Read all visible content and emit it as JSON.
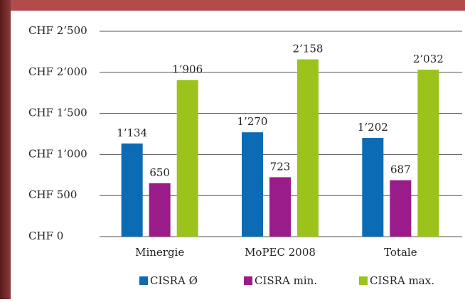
{
  "chart_data": {
    "type": "bar",
    "categories": [
      "Minergie",
      "MoPEC 2008",
      "Totale"
    ],
    "series": [
      {
        "name": "CISRA Ø",
        "color": "#0b6bb4",
        "values": [
          1134,
          1270,
          1202
        ],
        "value_labels": [
          "1’134",
          "1’270",
          "1’202"
        ]
      },
      {
        "name": "CISRA min.",
        "color": "#9a1b8a",
        "values": [
          650,
          723,
          687
        ],
        "value_labels": [
          "650",
          "723",
          "687"
        ]
      },
      {
        "name": "CISRA max.",
        "color": "#9bc31c",
        "values": [
          1906,
          2158,
          2032
        ],
        "value_labels": [
          "1’906",
          "2’158",
          "2’032"
        ]
      }
    ],
    "ylim": [
      0,
      2500
    ],
    "yticks": [
      {
        "value": 0,
        "label": "CHF 0"
      },
      {
        "value": 500,
        "label": "CHF 500"
      },
      {
        "value": 1000,
        "label": "CHF 1’000"
      },
      {
        "value": 1500,
        "label": "CHF 1’500"
      },
      {
        "value": 2000,
        "label": "CHF 2’000"
      },
      {
        "value": 2500,
        "label": "CHF 2’500"
      }
    ],
    "grid": true,
    "legend": "bottom"
  }
}
